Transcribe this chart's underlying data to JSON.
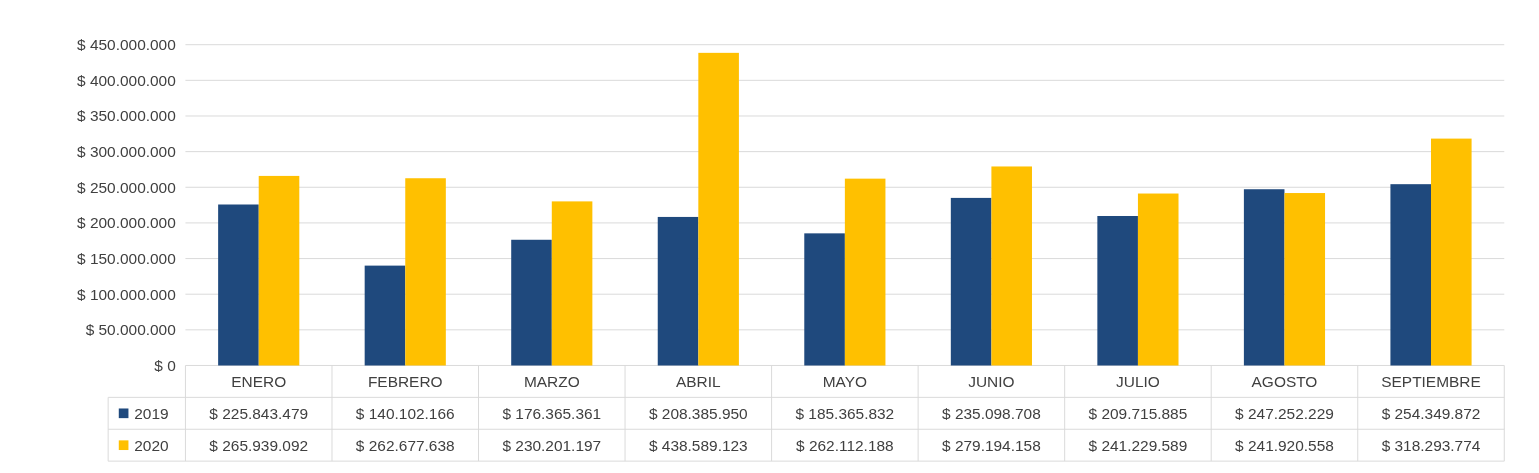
{
  "chart_data": {
    "type": "bar",
    "categories": [
      "ENERO",
      "FEBRERO",
      "MARZO",
      "ABRIL",
      "MAYO",
      "JUNIO",
      "JULIO",
      "AGOSTO",
      "SEPTIEMBRE"
    ],
    "series": [
      {
        "name": "2019",
        "color": "#1f497d",
        "values": [
          225843479,
          140102166,
          176365361,
          208385950,
          185365832,
          235098708,
          209715885,
          247252229,
          254349872
        ],
        "value_labels": [
          "$ 225.843.479",
          "$ 140.102.166",
          "$ 176.365.361",
          "$ 208.385.950",
          "$ 185.365.832",
          "$ 235.098.708",
          "$ 209.715.885",
          "$ 247.252.229",
          "$ 254.349.872"
        ]
      },
      {
        "name": "2020",
        "color": "#ffc000",
        "values": [
          265939092,
          262677638,
          230201197,
          438589123,
          262112188,
          279194158,
          241229589,
          241920558,
          318293774
        ],
        "value_labels": [
          "$ 265.939.092",
          "$ 262.677.638",
          "$ 230.201.197",
          "$ 438.589.123",
          "$ 262.112.188",
          "$ 279.194.158",
          "$ 241.229.589",
          "$ 241.920.558",
          "$ 318.293.774"
        ]
      }
    ],
    "ylim": [
      0,
      450000000
    ],
    "yticks": [
      {
        "value": 0,
        "label": "$ 0"
      },
      {
        "value": 50000000,
        "label": "$ 50.000.000"
      },
      {
        "value": 100000000,
        "label": "$ 100.000.000"
      },
      {
        "value": 150000000,
        "label": "$ 150.000.000"
      },
      {
        "value": 200000000,
        "label": "$ 200.000.000"
      },
      {
        "value": 250000000,
        "label": "$ 250.000.000"
      },
      {
        "value": 300000000,
        "label": "$ 300.000.000"
      },
      {
        "value": 350000000,
        "label": "$ 350.000.000"
      },
      {
        "value": 400000000,
        "label": "$ 400.000.000"
      },
      {
        "value": 450000000,
        "label": "$ 450.000.000"
      }
    ],
    "grid": "y",
    "legend": "bottom"
  }
}
